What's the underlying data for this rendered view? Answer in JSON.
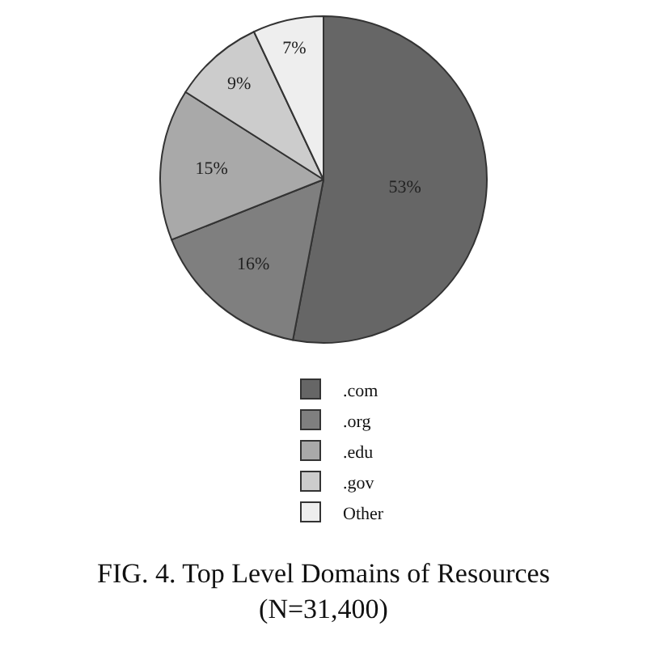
{
  "chart_data": {
    "type": "pie",
    "title": "FIG. 4. Top Level Domains of Resources\n(N=31,400)",
    "categories": [
      ".com",
      ".org",
      ".edu",
      ".gov",
      "Other"
    ],
    "values": [
      53,
      16,
      15,
      9,
      7
    ],
    "colors": [
      "#666666",
      "#7f7f7f",
      "#a9a9a9",
      "#cccccc",
      "#eeeeee"
    ],
    "value_labels": [
      "53%",
      "16%",
      "15%",
      "9%",
      "7%"
    ],
    "legend": "bottom"
  }
}
